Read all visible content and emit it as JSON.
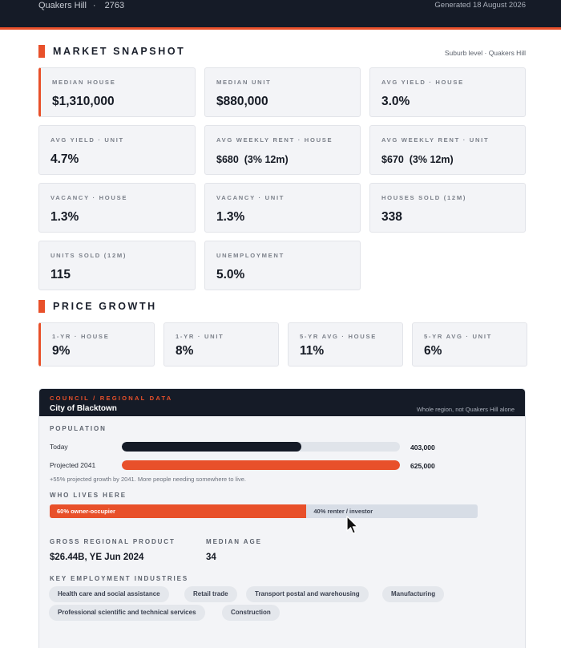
{
  "header": {
    "suburb": "Quakers Hill",
    "separator": "·",
    "postcode": "2763",
    "generated": "Generated 18 August 2026"
  },
  "market_snapshot": {
    "title": "MARKET SNAPSHOT",
    "note": "Suburb level · Quakers Hill",
    "cards": [
      {
        "label": "MEDIAN HOUSE",
        "value": "$1,310,000"
      },
      {
        "label": "MEDIAN UNIT",
        "value": "$880,000"
      },
      {
        "label": "AVG YIELD · HOUSE",
        "value": "3.0%"
      },
      {
        "label": "AVG YIELD · UNIT",
        "value": "4.7%"
      },
      {
        "label": "AVG WEEKLY RENT · HOUSE",
        "value": "$680  (3% 12m)"
      },
      {
        "label": "AVG WEEKLY RENT · UNIT",
        "value": "$670  (3% 12m)"
      },
      {
        "label": "VACANCY · HOUSE",
        "value": "1.3%"
      },
      {
        "label": "VACANCY · UNIT",
        "value": "1.3%"
      },
      {
        "label": "HOUSES SOLD (12M)",
        "value": "338"
      },
      {
        "label": "UNITS SOLD (12M)",
        "value": "115"
      },
      {
        "label": "UNEMPLOYMENT",
        "value": "5.0%"
      }
    ]
  },
  "price_growth": {
    "title": "PRICE GROWTH",
    "cards": [
      {
        "label": "1-YR · HOUSE",
        "value": "9%"
      },
      {
        "label": "1-YR · UNIT",
        "value": "8%"
      },
      {
        "label": "5-YR AVG · HOUSE",
        "value": "11%"
      },
      {
        "label": "5-YR AVG · UNIT",
        "value": "6%"
      }
    ]
  },
  "council": {
    "tag": "COUNCIL / REGIONAL DATA",
    "name": "City of Blacktown",
    "note": "Whole region, not Quakers Hill alone",
    "population": {
      "title": "POPULATION",
      "today_label": "Today",
      "today_value": "403,000",
      "today_fraction": 0.645,
      "projected_label": "Projected 2041",
      "projected_value": "625,000",
      "projected_fraction": 1.0,
      "note": "+55% projected growth by 2041. More people needing somewhere to live."
    },
    "who_lives_here": {
      "title": "WHO LIVES HERE",
      "owner_label": "60% owner-occupier",
      "owner_percent": 60,
      "renter_label": "40% renter / investor"
    },
    "gross_regional_product": {
      "label": "GROSS REGIONAL PRODUCT",
      "value": "$26.44B, YE Jun 2024"
    },
    "median_age": {
      "label": "MEDIAN AGE",
      "value": "34"
    },
    "industries": {
      "title": "KEY EMPLOYMENT INDUSTRIES",
      "items": [
        "Health care and social assistance",
        "Retail trade",
        "Transport postal and warehousing",
        "Manufacturing",
        "Professional scientific and technical services",
        "Construction"
      ]
    }
  },
  "colors": {
    "accent": "#e8502a",
    "dark": "#151b27"
  },
  "icons": {
    "cursor": "mouse-pointer-icon"
  }
}
